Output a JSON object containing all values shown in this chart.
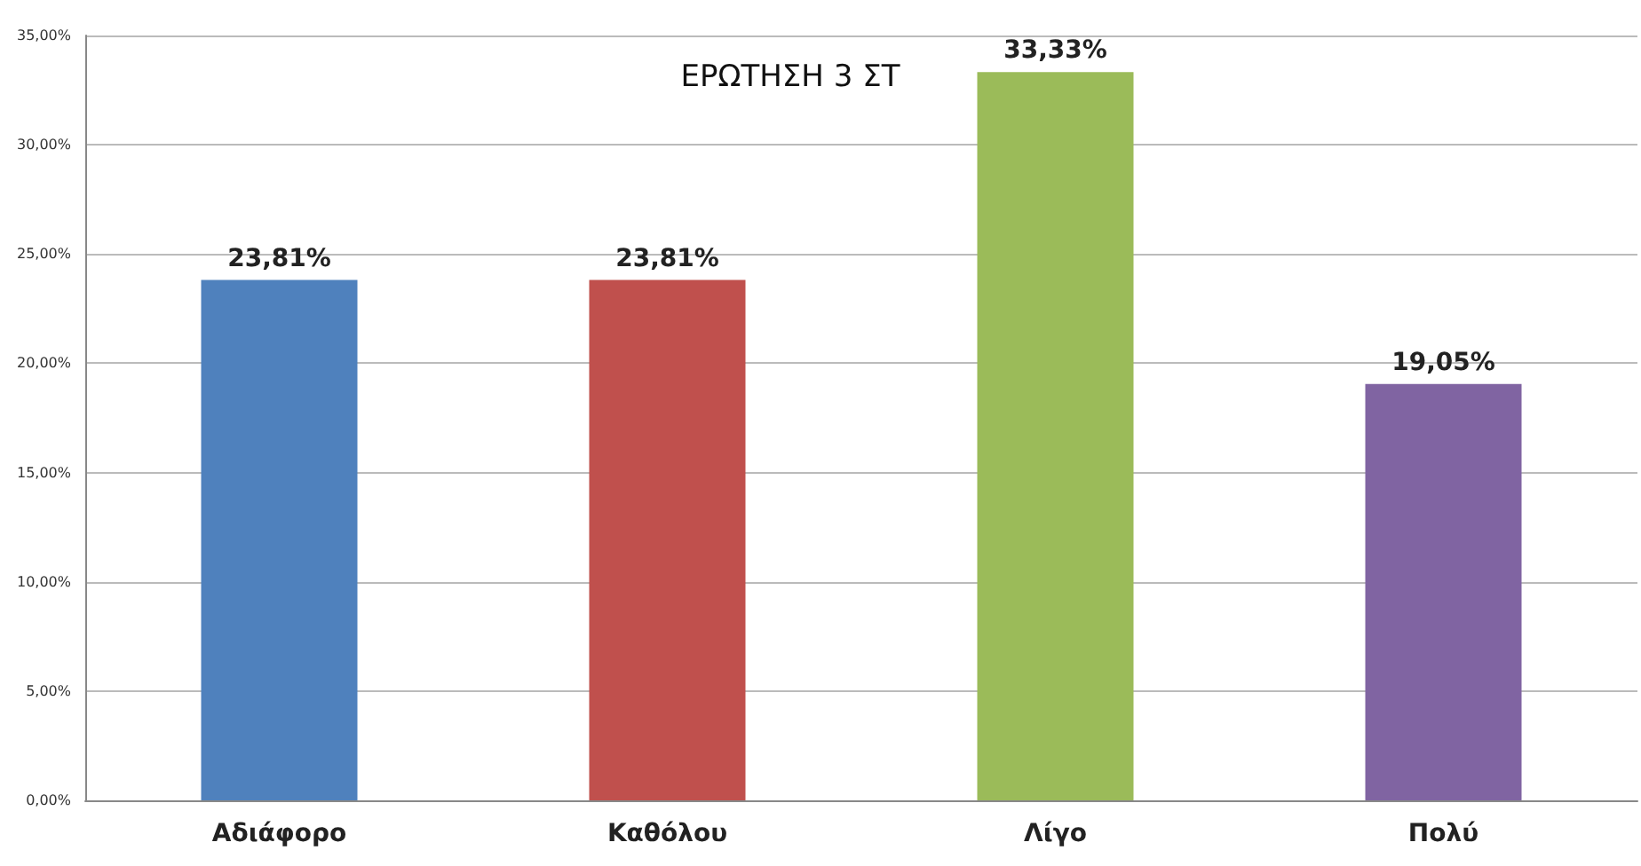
{
  "chart_data": {
    "type": "bar",
    "title": "ΕΡΩΤΗΣΗ 3 ΣΤ",
    "categories": [
      "Αδιάφορο",
      "Καθόλου",
      "Λίγο",
      "Πολύ"
    ],
    "values": [
      23.81,
      23.81,
      33.33,
      19.05
    ],
    "colors": [
      "#4f81bd",
      "#c0504d",
      "#9bbb59",
      "#8064a2"
    ],
    "value_labels": [
      "23,81%",
      "23,81%",
      "33,33%",
      "19,05%"
    ],
    "ylim": [
      0,
      35
    ],
    "yticks": [
      {
        "value": 0,
        "label": "0,00%"
      },
      {
        "value": 5,
        "label": "5,00%"
      },
      {
        "value": 10,
        "label": "10,00%"
      },
      {
        "value": 15,
        "label": "15,00%"
      },
      {
        "value": 20,
        "label": "20,00%"
      },
      {
        "value": 25,
        "label": "25,00%"
      },
      {
        "value": 30,
        "label": "30,00%"
      },
      {
        "value": 35,
        "label": "35,00%"
      }
    ],
    "grid": "y"
  }
}
